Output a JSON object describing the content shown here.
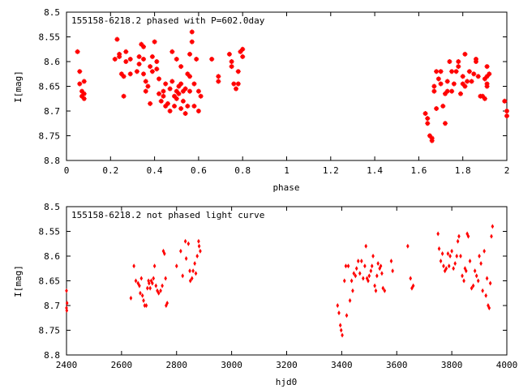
{
  "chart_data": [
    {
      "type": "scatter",
      "title": "155158-6218.2 phased with P=602.0day",
      "xlabel": "phase",
      "ylabel": "I[mag]",
      "xlim": [
        0,
        2
      ],
      "ylim": [
        8.5,
        8.8
      ],
      "y_inverted": true,
      "grid": false,
      "xticks": [
        "0",
        "0.2",
        "0.4",
        "0.6",
        "0.8",
        "1",
        "1.2",
        "1.4",
        "1.6",
        "1.8",
        "2"
      ],
      "yticks": [
        "8.5",
        "8.55",
        "8.6",
        "8.65",
        "8.7",
        "8.75",
        "8.8"
      ],
      "marker": "plus",
      "color": "#ff0000",
      "points": [
        [
          0.05,
          8.58
        ],
        [
          0.06,
          8.62
        ],
        [
          0.06,
          8.645
        ],
        [
          0.07,
          8.66
        ],
        [
          0.07,
          8.67
        ],
        [
          0.08,
          8.64
        ],
        [
          0.08,
          8.665
        ],
        [
          0.08,
          8.675
        ],
        [
          0.22,
          8.595
        ],
        [
          0.23,
          8.555
        ],
        [
          0.24,
          8.59
        ],
        [
          0.24,
          8.585
        ],
        [
          0.25,
          8.625
        ],
        [
          0.26,
          8.67
        ],
        [
          0.26,
          8.63
        ],
        [
          0.27,
          8.58
        ],
        [
          0.27,
          8.6
        ],
        [
          0.29,
          8.595
        ],
        [
          0.29,
          8.625
        ],
        [
          0.32,
          8.62
        ],
        [
          0.33,
          8.605
        ],
        [
          0.33,
          8.59
        ],
        [
          0.34,
          8.565
        ],
        [
          0.35,
          8.57
        ],
        [
          0.35,
          8.595
        ],
        [
          0.35,
          8.625
        ],
        [
          0.36,
          8.64
        ],
        [
          0.36,
          8.66
        ],
        [
          0.37,
          8.65
        ],
        [
          0.38,
          8.61
        ],
        [
          0.38,
          8.685
        ],
        [
          0.39,
          8.59
        ],
        [
          0.39,
          8.62
        ],
        [
          0.4,
          8.56
        ],
        [
          0.41,
          8.6
        ],
        [
          0.41,
          8.615
        ],
        [
          0.42,
          8.635
        ],
        [
          0.42,
          8.665
        ],
        [
          0.43,
          8.68
        ],
        [
          0.44,
          8.66
        ],
        [
          0.44,
          8.67
        ],
        [
          0.45,
          8.645
        ],
        [
          0.45,
          8.69
        ],
        [
          0.46,
          8.685
        ],
        [
          0.47,
          8.655
        ],
        [
          0.47,
          8.7
        ],
        [
          0.48,
          8.58
        ],
        [
          0.48,
          8.64
        ],
        [
          0.49,
          8.69
        ],
        [
          0.49,
          8.67
        ],
        [
          0.5,
          8.595
        ],
        [
          0.5,
          8.66
        ],
        [
          0.5,
          8.675
        ],
        [
          0.51,
          8.65
        ],
        [
          0.51,
          8.665
        ],
        [
          0.52,
          8.61
        ],
        [
          0.52,
          8.645
        ],
        [
          0.52,
          8.695
        ],
        [
          0.53,
          8.66
        ],
        [
          0.53,
          8.68
        ],
        [
          0.54,
          8.655
        ],
        [
          0.54,
          8.705
        ],
        [
          0.55,
          8.625
        ],
        [
          0.55,
          8.69
        ],
        [
          0.56,
          8.585
        ],
        [
          0.56,
          8.63
        ],
        [
          0.56,
          8.66
        ],
        [
          0.57,
          8.56
        ],
        [
          0.57,
          8.54
        ],
        [
          0.58,
          8.645
        ],
        [
          0.58,
          8.69
        ],
        [
          0.59,
          8.595
        ],
        [
          0.6,
          8.7
        ],
        [
          0.6,
          8.66
        ],
        [
          0.61,
          8.67
        ],
        [
          0.66,
          8.595
        ],
        [
          0.69,
          8.63
        ],
        [
          0.69,
          8.64
        ],
        [
          0.74,
          8.585
        ],
        [
          0.75,
          8.6
        ],
        [
          0.75,
          8.61
        ],
        [
          0.76,
          8.645
        ],
        [
          0.77,
          8.655
        ],
        [
          0.78,
          8.62
        ],
        [
          0.78,
          8.645
        ],
        [
          0.79,
          8.58
        ],
        [
          0.8,
          8.59
        ],
        [
          0.8,
          8.575
        ],
        [
          1.63,
          8.705
        ],
        [
          1.64,
          8.725
        ],
        [
          1.64,
          8.715
        ],
        [
          1.65,
          8.75
        ],
        [
          1.66,
          8.755
        ],
        [
          1.66,
          8.76
        ],
        [
          1.67,
          8.65
        ],
        [
          1.67,
          8.66
        ],
        [
          1.68,
          8.62
        ],
        [
          1.68,
          8.695
        ],
        [
          1.69,
          8.635
        ],
        [
          1.7,
          8.645
        ],
        [
          1.7,
          8.62
        ],
        [
          1.71,
          8.69
        ],
        [
          1.72,
          8.725
        ],
        [
          1.72,
          8.665
        ],
        [
          1.73,
          8.64
        ],
        [
          1.73,
          8.66
        ],
        [
          1.74,
          8.6
        ],
        [
          1.75,
          8.66
        ],
        [
          1.75,
          8.62
        ],
        [
          1.76,
          8.645
        ],
        [
          1.77,
          8.62
        ],
        [
          1.78,
          8.6
        ],
        [
          1.78,
          8.61
        ],
        [
          1.79,
          8.665
        ],
        [
          1.8,
          8.645
        ],
        [
          1.8,
          8.63
        ],
        [
          1.81,
          8.585
        ],
        [
          1.81,
          8.65
        ],
        [
          1.82,
          8.64
        ],
        [
          1.83,
          8.62
        ],
        [
          1.84,
          8.64
        ],
        [
          1.85,
          8.625
        ],
        [
          1.86,
          8.6
        ],
        [
          1.86,
          8.595
        ],
        [
          1.87,
          8.63
        ],
        [
          1.88,
          8.67
        ],
        [
          1.89,
          8.67
        ],
        [
          1.9,
          8.675
        ],
        [
          1.9,
          8.635
        ],
        [
          1.91,
          8.645
        ],
        [
          1.91,
          8.63
        ],
        [
          1.91,
          8.65
        ],
        [
          1.91,
          8.61
        ],
        [
          1.92,
          8.625
        ],
        [
          2.0,
          8.7
        ],
        [
          2.0,
          8.71
        ],
        [
          1.99,
          8.68
        ]
      ]
    },
    {
      "type": "scatter",
      "title": "155158-6218.2 not phased light curve",
      "xlabel": "hjd0",
      "ylabel": "I[mag]",
      "xlim": [
        2400,
        4000
      ],
      "ylim": [
        8.5,
        8.8
      ],
      "y_inverted": true,
      "grid": false,
      "xticks": [
        "2400",
        "2600",
        "2800",
        "3000",
        "3200",
        "3400",
        "3600",
        "3800",
        "4000"
      ],
      "yticks": [
        "8.5",
        "8.55",
        "8.6",
        "8.65",
        "8.7",
        "8.75",
        "8.8"
      ],
      "marker": "diamond",
      "color": "#ff0000",
      "points": [
        [
          2400,
          8.67
        ],
        [
          2400,
          8.705
        ],
        [
          2401,
          8.71
        ],
        [
          2402,
          8.695
        ],
        [
          2634,
          8.685
        ],
        [
          2645,
          8.62
        ],
        [
          2652,
          8.65
        ],
        [
          2660,
          8.655
        ],
        [
          2665,
          8.66
        ],
        [
          2668,
          8.675
        ],
        [
          2672,
          8.645
        ],
        [
          2676,
          8.68
        ],
        [
          2680,
          8.69
        ],
        [
          2684,
          8.7
        ],
        [
          2690,
          8.7
        ],
        [
          2694,
          8.665
        ],
        [
          2698,
          8.65
        ],
        [
          2700,
          8.655
        ],
        [
          2704,
          8.665
        ],
        [
          2708,
          8.65
        ],
        [
          2712,
          8.655
        ],
        [
          2716,
          8.645
        ],
        [
          2720,
          8.62
        ],
        [
          2725,
          8.66
        ],
        [
          2730,
          8.67
        ],
        [
          2735,
          8.675
        ],
        [
          2742,
          8.67
        ],
        [
          2748,
          8.66
        ],
        [
          2752,
          8.59
        ],
        [
          2756,
          8.595
        ],
        [
          2762,
          8.7
        ],
        [
          2766,
          8.695
        ],
        [
          2760,
          8.645
        ],
        [
          2800,
          8.62
        ],
        [
          2815,
          8.59
        ],
        [
          2822,
          8.64
        ],
        [
          2832,
          8.57
        ],
        [
          2835,
          8.605
        ],
        [
          2843,
          8.575
        ],
        [
          2848,
          8.63
        ],
        [
          2850,
          8.65
        ],
        [
          2856,
          8.645
        ],
        [
          2860,
          8.63
        ],
        [
          2866,
          8.615
        ],
        [
          2870,
          8.635
        ],
        [
          2875,
          8.6
        ],
        [
          2880,
          8.57
        ],
        [
          2882,
          8.58
        ],
        [
          2886,
          8.59
        ],
        [
          3385,
          8.7
        ],
        [
          3390,
          8.715
        ],
        [
          3395,
          8.74
        ],
        [
          3398,
          8.75
        ],
        [
          3402,
          8.76
        ],
        [
          3410,
          8.65
        ],
        [
          3415,
          8.62
        ],
        [
          3418,
          8.72
        ],
        [
          3424,
          8.62
        ],
        [
          3430,
          8.69
        ],
        [
          3436,
          8.65
        ],
        [
          3440,
          8.67
        ],
        [
          3444,
          8.635
        ],
        [
          3450,
          8.64
        ],
        [
          3454,
          8.625
        ],
        [
          3460,
          8.61
        ],
        [
          3466,
          8.635
        ],
        [
          3472,
          8.61
        ],
        [
          3478,
          8.645
        ],
        [
          3484,
          8.62
        ],
        [
          3488,
          8.58
        ],
        [
          3492,
          8.645
        ],
        [
          3496,
          8.65
        ],
        [
          3500,
          8.64
        ],
        [
          3506,
          8.63
        ],
        [
          3510,
          8.62
        ],
        [
          3514,
          8.6
        ],
        [
          3520,
          8.66
        ],
        [
          3524,
          8.67
        ],
        [
          3528,
          8.64
        ],
        [
          3532,
          8.615
        ],
        [
          3538,
          8.625
        ],
        [
          3542,
          8.62
        ],
        [
          3546,
          8.635
        ],
        [
          3550,
          8.665
        ],
        [
          3556,
          8.67
        ],
        [
          3580,
          8.61
        ],
        [
          3585,
          8.63
        ],
        [
          3640,
          8.58
        ],
        [
          3650,
          8.645
        ],
        [
          3655,
          8.665
        ],
        [
          3660,
          8.66
        ],
        [
          3750,
          8.555
        ],
        [
          3754,
          8.585
        ],
        [
          3760,
          8.61
        ],
        [
          3766,
          8.595
        ],
        [
          3770,
          8.62
        ],
        [
          3775,
          8.63
        ],
        [
          3780,
          8.625
        ],
        [
          3786,
          8.595
        ],
        [
          3790,
          8.62
        ],
        [
          3794,
          8.6
        ],
        [
          3800,
          8.59
        ],
        [
          3806,
          8.625
        ],
        [
          3812,
          8.615
        ],
        [
          3818,
          8.6
        ],
        [
          3822,
          8.57
        ],
        [
          3826,
          8.56
        ],
        [
          3832,
          8.6
        ],
        [
          3838,
          8.64
        ],
        [
          3844,
          8.65
        ],
        [
          3848,
          8.625
        ],
        [
          3852,
          8.63
        ],
        [
          3856,
          8.555
        ],
        [
          3860,
          8.56
        ],
        [
          3866,
          8.61
        ],
        [
          3872,
          8.665
        ],
        [
          3878,
          8.66
        ],
        [
          3884,
          8.63
        ],
        [
          3890,
          8.64
        ],
        [
          3896,
          8.65
        ],
        [
          3900,
          8.6
        ],
        [
          3906,
          8.615
        ],
        [
          3912,
          8.67
        ],
        [
          3918,
          8.59
        ],
        [
          3924,
          8.68
        ],
        [
          3928,
          8.645
        ],
        [
          3932,
          8.7
        ],
        [
          3936,
          8.705
        ],
        [
          3940,
          8.655
        ],
        [
          3944,
          8.56
        ],
        [
          3948,
          8.54
        ]
      ]
    }
  ]
}
